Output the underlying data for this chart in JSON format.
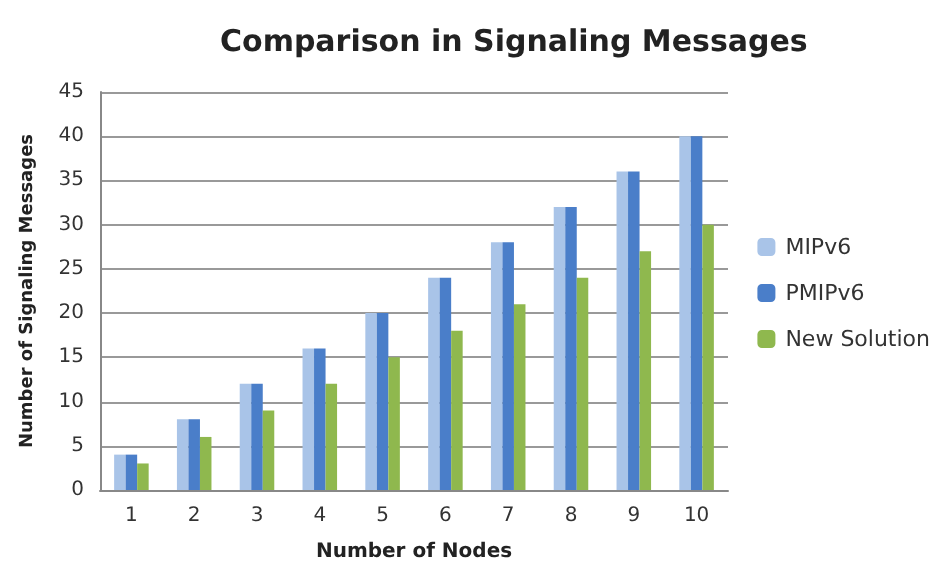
{
  "chart_data": {
    "type": "bar",
    "title": "Comparison in Signaling Messages",
    "xlabel": "Number of Nodes",
    "ylabel": "Number of Signaling Messages",
    "categories": [
      "1",
      "2",
      "3",
      "4",
      "5",
      "6",
      "7",
      "8",
      "9",
      "10"
    ],
    "series": [
      {
        "name": "MIPv6",
        "color": "#a9c4e8",
        "values": [
          4,
          8,
          12,
          16,
          20,
          24,
          28,
          32,
          36,
          40
        ]
      },
      {
        "name": "PMIPv6",
        "color": "#4a7ec9",
        "values": [
          4,
          8,
          12,
          16,
          20,
          24,
          28,
          32,
          36,
          40
        ]
      },
      {
        "name": "New Solution",
        "color": "#8fb84e",
        "values": [
          3,
          6,
          9,
          12,
          15,
          18,
          21,
          24,
          27,
          30
        ]
      }
    ],
    "ylim": [
      0,
      45
    ],
    "yticks": [
      0,
      5,
      10,
      15,
      20,
      25,
      30,
      35,
      40,
      45
    ],
    "grid": "y",
    "legend": "right"
  }
}
